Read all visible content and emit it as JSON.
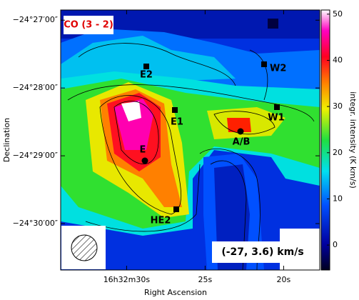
{
  "chart_data": {
    "type": "map",
    "title": "CO (3 - 2)",
    "annotation": "(-27, 3.6) km/s",
    "xlabel": "Right Ascension",
    "ylabel": "Declination",
    "colorbar_label": "integr. intensity (K km/s)",
    "xlim": [
      34.2,
      17.7
    ],
    "xticks": [
      {
        "value": 30,
        "label": "16h32m30s"
      },
      {
        "value": 25,
        "label": "25s"
      },
      {
        "value": 20,
        "label": "20s"
      }
    ],
    "ylim": [
      -24.4475,
      -24.5114
    ],
    "yticks": [
      {
        "value": -24.45,
        "label": "−24°27′00″"
      },
      {
        "value": -24.466667,
        "label": "−24°28′00″"
      },
      {
        "value": -24.483333,
        "label": "−24°29′00″"
      },
      {
        "value": -24.5,
        "label": "−24°30′00″"
      }
    ],
    "zlim": [
      -5.4,
      50.9
    ],
    "zticks": [
      0,
      10,
      20,
      30,
      40,
      50
    ],
    "sources": [
      {
        "label": "E2",
        "marker": "square"
      },
      {
        "label": "W2",
        "marker": "square"
      },
      {
        "label": "E1",
        "marker": "square"
      },
      {
        "label": "W1",
        "marker": "square"
      },
      {
        "label": "A/B",
        "marker": "circle"
      },
      {
        "label": "E",
        "marker": "circle"
      },
      {
        "label": "HE2",
        "marker": "square"
      }
    ]
  }
}
